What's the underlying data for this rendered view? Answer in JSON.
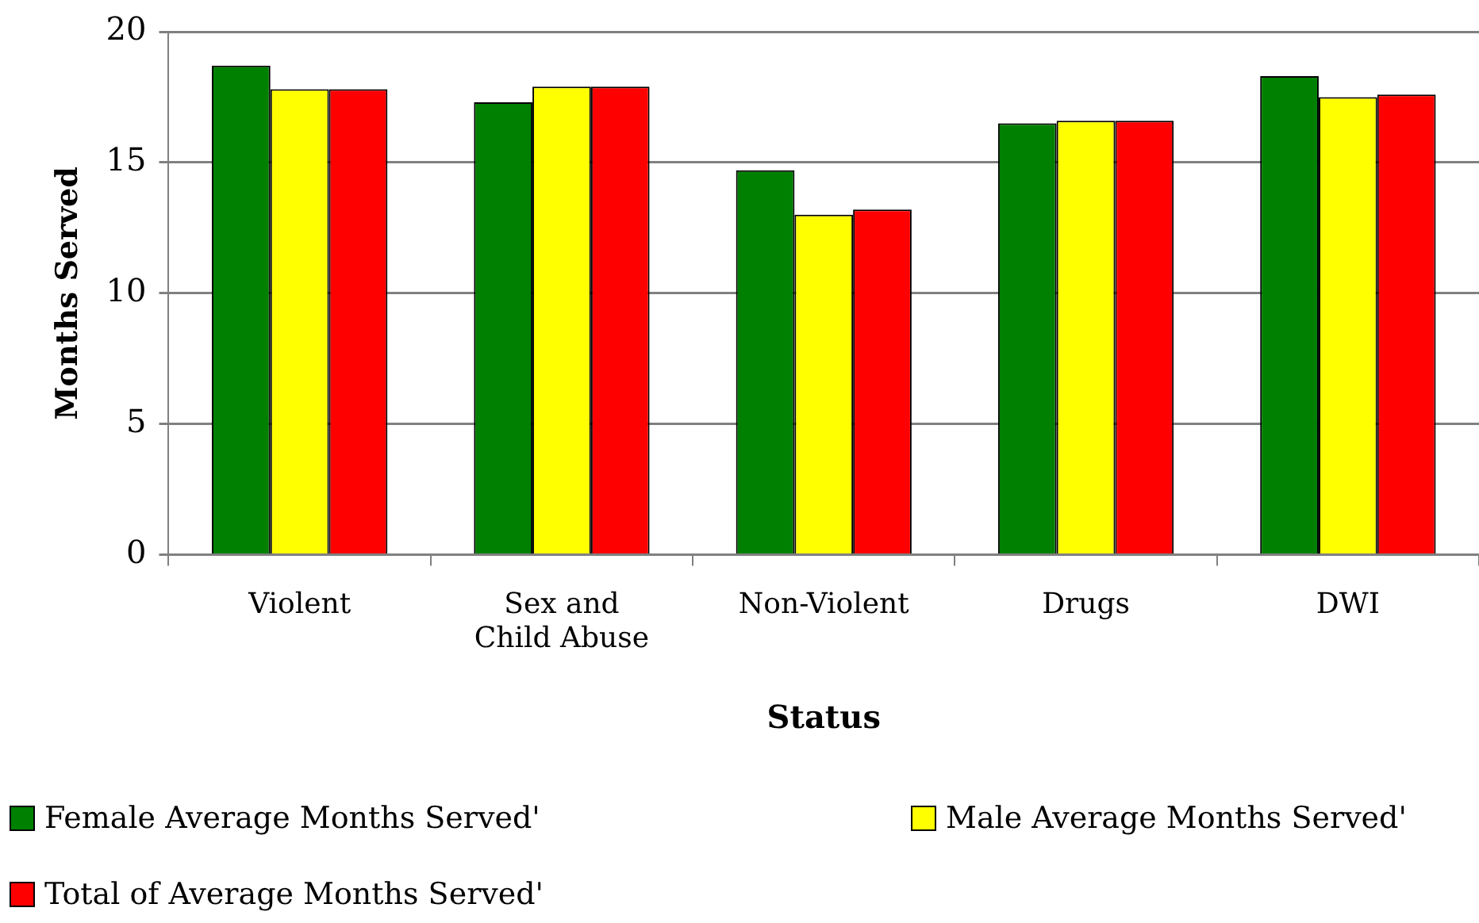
{
  "chart_data": {
    "type": "bar",
    "xlabel": "Status",
    "ylabel": "Months Served",
    "categories": [
      "Violent",
      "Sex and Child Abuse",
      "Non-Violent",
      "Drugs",
      "DWI"
    ],
    "series": [
      {
        "name": "Female Average Months Served'",
        "color": "#008000",
        "values": [
          18.7,
          17.3,
          14.7,
          16.5,
          18.3
        ]
      },
      {
        "name": "Male Average Months Served'",
        "color": "#ffff00",
        "values": [
          17.8,
          17.9,
          13.0,
          16.6,
          17.5
        ]
      },
      {
        "name": "Total of Average Months Served'",
        "color": "#ff0000",
        "values": [
          17.8,
          17.9,
          13.2,
          16.6,
          17.6
        ]
      }
    ],
    "ylim": [
      0,
      20
    ],
    "yticks": [
      0,
      5,
      10,
      15,
      20
    ],
    "grid": "y",
    "legend": "bottom left"
  }
}
